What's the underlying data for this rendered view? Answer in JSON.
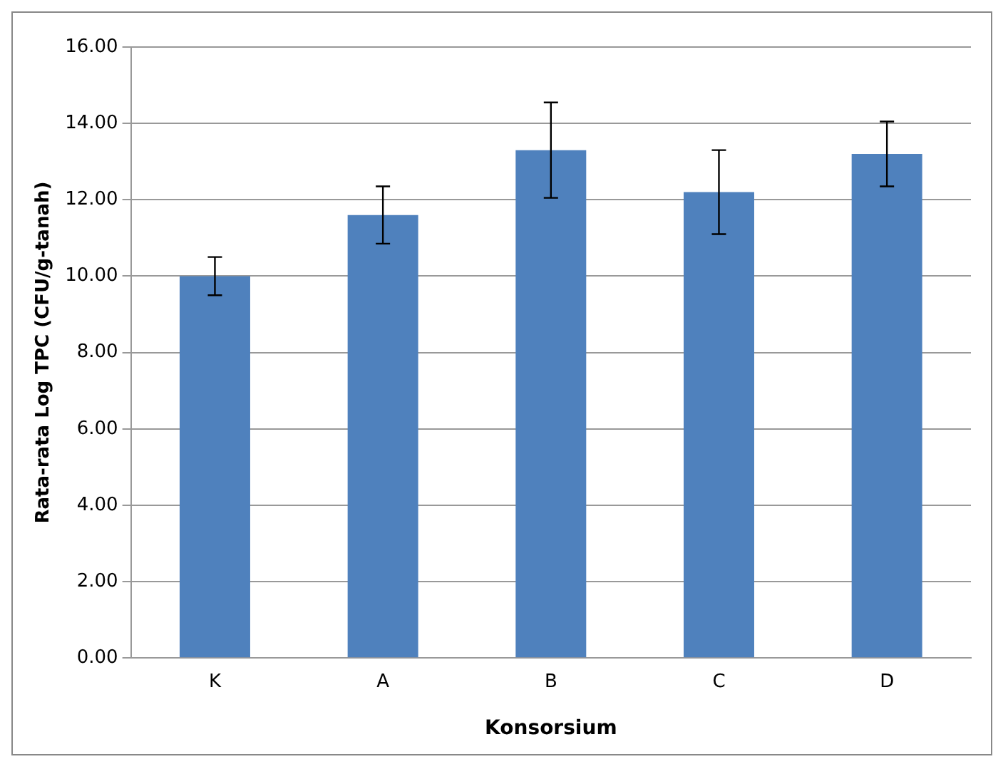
{
  "chart_data": {
    "type": "bar",
    "xlabel": "Konsorsium",
    "ylabel": "Rata-rata Log TPC (CFU/g-tanah)",
    "categories": [
      "K",
      "A",
      "B",
      "C",
      "D"
    ],
    "values": [
      10.0,
      11.6,
      13.3,
      12.2,
      13.2
    ],
    "errors": [
      0.5,
      0.75,
      1.25,
      1.1,
      0.85
    ],
    "color": "#4f81bd",
    "ylim": [
      0,
      16
    ],
    "yticks": [
      {
        "value": 0,
        "label": "0.00"
      },
      {
        "value": 2,
        "label": "2.00"
      },
      {
        "value": 4,
        "label": "4.00"
      },
      {
        "value": 6,
        "label": "6.00"
      },
      {
        "value": 8,
        "label": "8.00"
      },
      {
        "value": 10,
        "label": "10.00"
      },
      {
        "value": 12,
        "label": "12.00"
      },
      {
        "value": 14,
        "label": "14.00"
      },
      {
        "value": 16,
        "label": "16.00"
      }
    ],
    "grid": "y",
    "legend": false
  }
}
